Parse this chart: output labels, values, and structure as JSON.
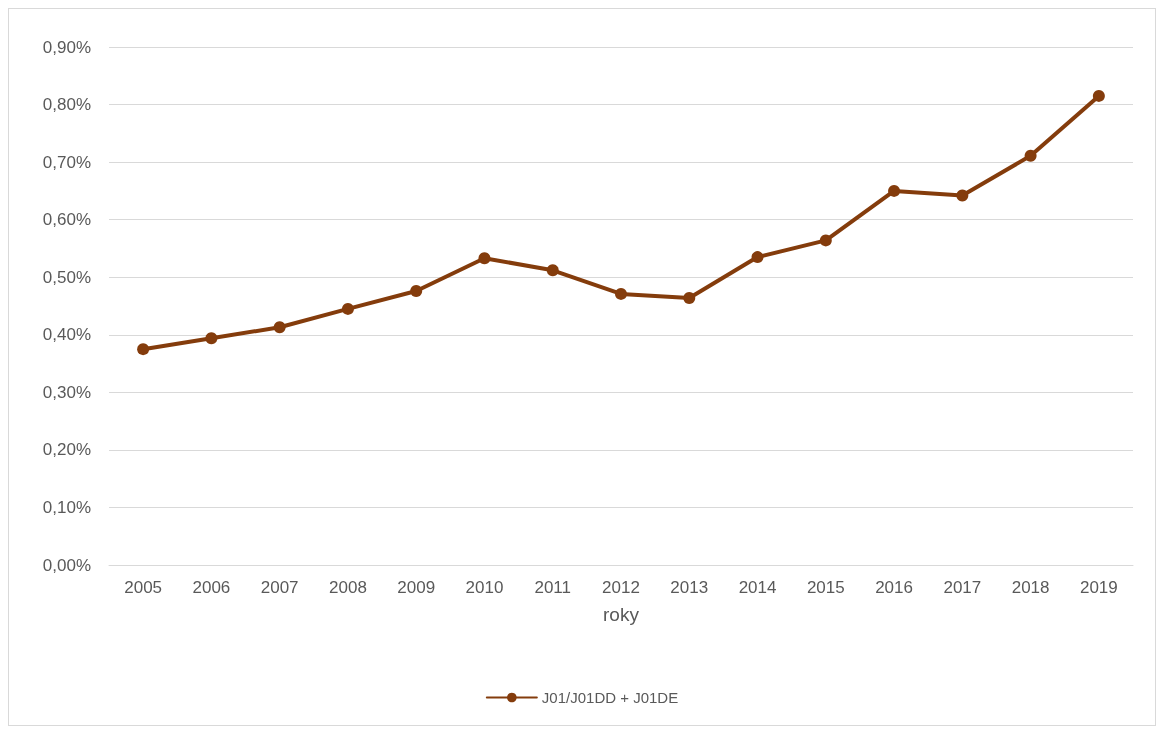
{
  "chart_data": {
    "type": "line",
    "xlabel": "roky",
    "categories": [
      "2005",
      "2006",
      "2007",
      "2008",
      "2009",
      "2010",
      "2011",
      "2012",
      "2013",
      "2014",
      "2015",
      "2016",
      "2017",
      "2018",
      "2019"
    ],
    "series": [
      {
        "name": "J01/J01DD + J01DE",
        "color": "#843c0c",
        "values": [
          0.375,
          0.394,
          0.413,
          0.445,
          0.476,
          0.533,
          0.512,
          0.471,
          0.464,
          0.535,
          0.564,
          0.65,
          0.642,
          0.711,
          0.815
        ]
      }
    ],
    "ylim": [
      0,
      0.9
    ],
    "yticks": [
      {
        "value": 0,
        "label": "0,00%"
      },
      {
        "value": 0.1,
        "label": "0,10%"
      },
      {
        "value": 0.2,
        "label": "0,20%"
      },
      {
        "value": 0.3,
        "label": "0,30%"
      },
      {
        "value": 0.4,
        "label": "0,40%"
      },
      {
        "value": 0.5,
        "label": "0,50%"
      },
      {
        "value": 0.6,
        "label": "0,60%"
      },
      {
        "value": 0.7,
        "label": "0,70%"
      },
      {
        "value": 0.8,
        "label": "0,80%"
      },
      {
        "value": 0.9,
        "label": "0,90%"
      }
    ],
    "grid": "y",
    "legend": "bottom",
    "marker": "circle",
    "line_style": "solid"
  }
}
